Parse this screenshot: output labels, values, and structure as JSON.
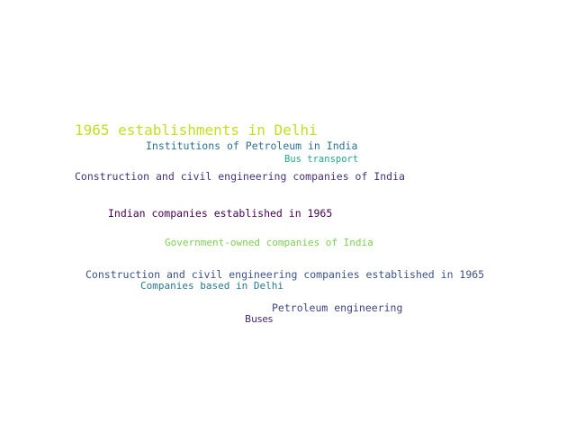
{
  "words": [
    {
      "text": "1965 establishments in Delhi",
      "color": "#c2df23"
    },
    {
      "text": "Institutions of Petroleum in India",
      "color": "#2c728e"
    },
    {
      "text": "Bus transport",
      "color": "#22a884"
    },
    {
      "text": "Construction and civil engineering companies of India",
      "color": "#46327e"
    },
    {
      "text": "Indian companies established in 1965",
      "color": "#440154"
    },
    {
      "text": "Government-owned companies of India",
      "color": "#7ad151"
    },
    {
      "text": "Construction and civil engineering companies established in 1965",
      "color": "#3b528b"
    },
    {
      "text": "Companies based in Delhi",
      "color": "#2a788e"
    },
    {
      "text": "Petroleum engineering",
      "color": "#414487"
    },
    {
      "text": "Buses",
      "color": "#481f70"
    }
  ]
}
